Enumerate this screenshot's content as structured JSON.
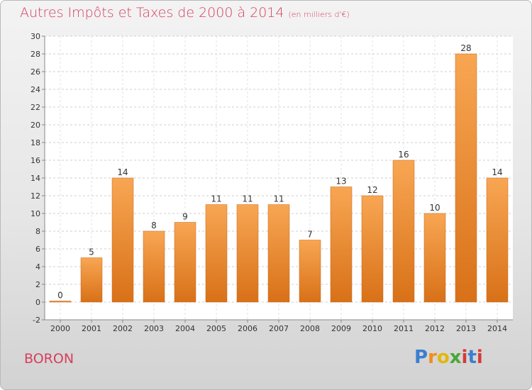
{
  "chart_data": {
    "type": "bar",
    "title": "Autres Impôts et Taxes de 2000 à 2014",
    "subtitle": "(en milliers d'€)",
    "categories": [
      "2000",
      "2001",
      "2002",
      "2003",
      "2004",
      "2005",
      "2006",
      "2007",
      "2008",
      "2009",
      "2010",
      "2011",
      "2012",
      "2013",
      "2014"
    ],
    "values": [
      0,
      5,
      14,
      8,
      9,
      11,
      11,
      11,
      7,
      13,
      12,
      16,
      10,
      28,
      14
    ],
    "ylim": [
      -2,
      30
    ],
    "yticks": [
      -2,
      0,
      2,
      4,
      6,
      8,
      10,
      12,
      14,
      16,
      18,
      20,
      22,
      24,
      26,
      28,
      30
    ],
    "grid": true,
    "bar_color_top": "#f8a653",
    "bar_color_bottom": "#d87118",
    "bar_edge": "#c8661a"
  },
  "footer": {
    "place_name": "BORON",
    "logo_letters": [
      "P",
      "r",
      "o",
      "x",
      "i",
      "t",
      "i"
    ],
    "logo_colors": [
      "#3a7fd0",
      "#f28c1c",
      "#e2b80a",
      "#4aa636",
      "#d63a3a",
      "#3a7fd0",
      "#d63a3a"
    ]
  }
}
